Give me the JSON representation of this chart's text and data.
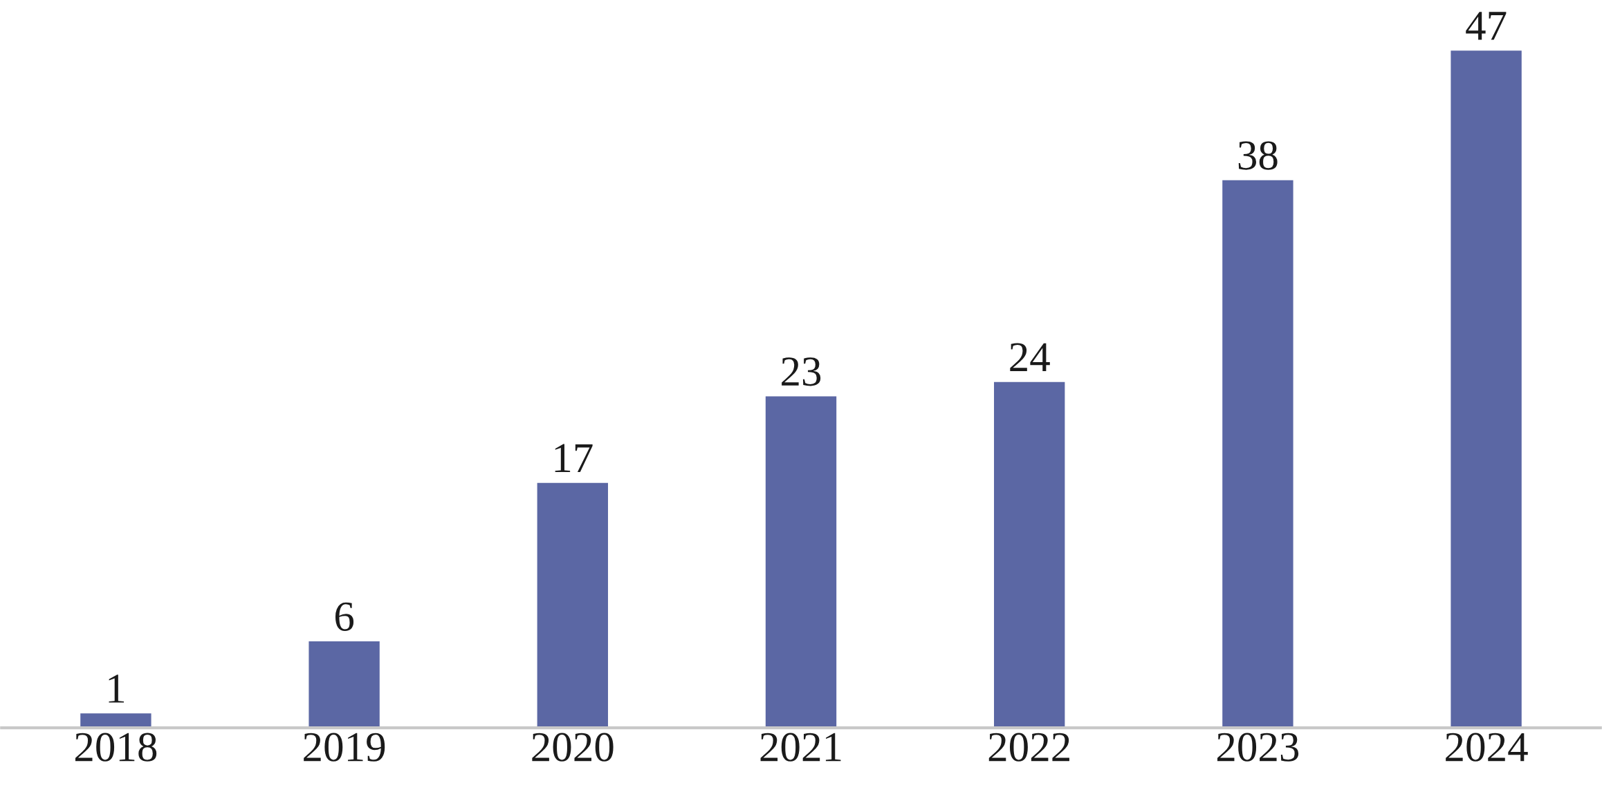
{
  "chart_data": {
    "type": "bar",
    "categories": [
      "2018",
      "2019",
      "2020",
      "2021",
      "2022",
      "2023",
      "2024"
    ],
    "values": [
      1,
      6,
      17,
      23,
      24,
      38,
      47
    ],
    "color": "#5b67a4",
    "data_labels": true,
    "grid": false,
    "legend": false
  }
}
